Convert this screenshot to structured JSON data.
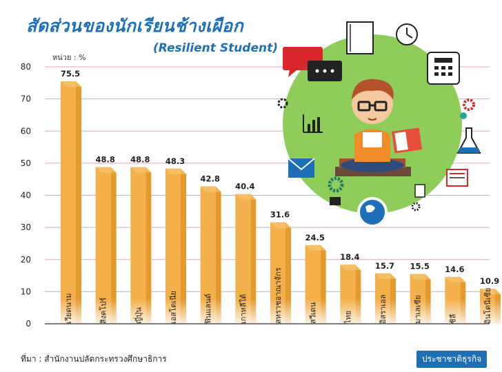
{
  "header": {
    "title": "สัดส่วนของนักเรียนช้างเผือก",
    "subtitle": "(Resilient Student)"
  },
  "footer": {
    "source": "ที่มา : สำนักงานปลัดกระทรวงศึกษาธิการ",
    "brand": "ประชาชาติธุรกิจ"
  },
  "colors": {
    "bar_front": "#f4b04a",
    "bar_side": "#e59a2c",
    "bar_top": "#f8c976",
    "grid": "#d9a7c9",
    "title": "#1d6fb8",
    "circle": "#8fcd5a"
  },
  "chart_data": {
    "type": "bar",
    "unit_label": "หน่วย : %",
    "ylim": [
      0,
      80
    ],
    "yticks": [
      0,
      10,
      20,
      30,
      40,
      50,
      60,
      70,
      80
    ],
    "grid": true,
    "categories": [
      "เวียดนาม",
      "สิงคโปร์",
      "ญี่ปุ่น",
      "เอสโตเนีย",
      "ฟินแลนด์",
      "เกาหลีใต้",
      "สหราชอาณาจักร",
      "สวีเดน",
      "ไทย",
      "อิสราเอล",
      "มาเลเซีย",
      "ชิลี",
      "อินโดนีเซีย"
    ],
    "values": [
      75.5,
      48.8,
      48.8,
      48.3,
      42.8,
      40.4,
      31.6,
      24.5,
      18.4,
      15.7,
      15.5,
      14.6,
      10.9
    ],
    "value_labels": [
      "75.5",
      "48.8",
      "48.8",
      "48.3",
      "42.8",
      "40.4",
      "31.6",
      "24.5",
      "18.4",
      "15.7",
      "15.5",
      "14.6",
      "10.9"
    ]
  },
  "illustration": {
    "description_icons": [
      "chat-icon",
      "notebook-icon",
      "clock-icon",
      "calculator-icon",
      "gear-icon",
      "chart-icon",
      "envelope-icon",
      "globe-icon",
      "flask-icon",
      "document-icon",
      "boy-reading-icon"
    ]
  }
}
